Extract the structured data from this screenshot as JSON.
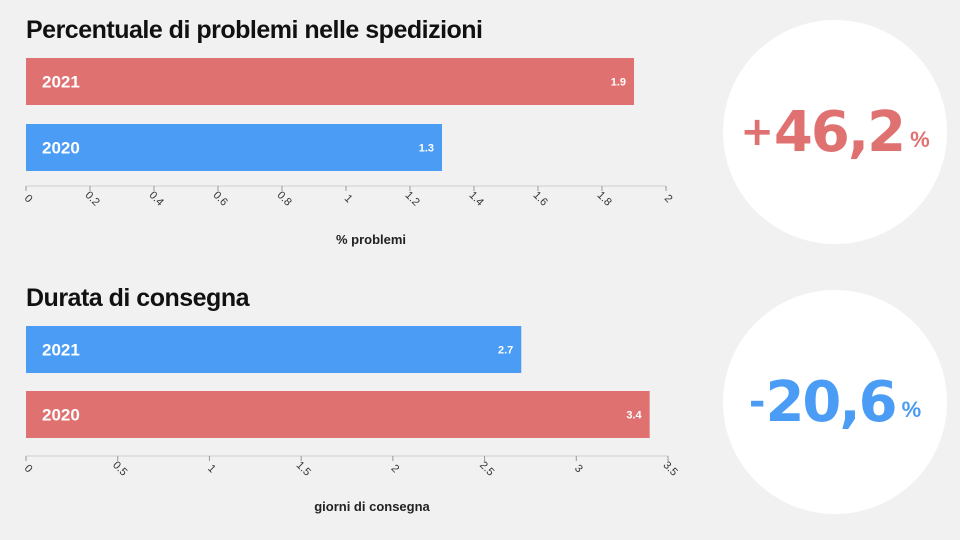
{
  "colors": {
    "red": "#e07171",
    "blue": "#4a9cf5",
    "background": "#f1f1f1"
  },
  "chart_data": [
    {
      "type": "bar",
      "orientation": "horizontal",
      "title": "Percentuale di problemi nelle spedizioni",
      "categories": [
        "2021",
        "2020"
      ],
      "values": [
        1.9,
        1.3
      ],
      "value_labels": [
        "1.9",
        "1.3"
      ],
      "bar_colors": [
        "#e07171",
        "#4a9cf5"
      ],
      "xlabel": "% problemi",
      "xlim": [
        0,
        2
      ],
      "xticks": [
        0,
        0.2,
        0.4,
        0.6,
        0.8,
        1,
        1.2,
        1.4,
        1.6,
        1.8,
        2
      ],
      "xtick_labels": [
        "0",
        "0.2",
        "0.4",
        "0.6",
        "0.8",
        "1",
        "1.2",
        "1.4",
        "1.6",
        "1.8",
        "2"
      ],
      "grid": false
    },
    {
      "type": "bar",
      "orientation": "horizontal",
      "title": "Durata di consegna",
      "categories": [
        "2021",
        "2020"
      ],
      "values": [
        2.7,
        3.4
      ],
      "value_labels": [
        "2.7",
        "3.4"
      ],
      "bar_colors": [
        "#4a9cf5",
        "#e07171"
      ],
      "xlabel": "giorni di consegna",
      "xlim": [
        0,
        3.5
      ],
      "xticks": [
        0,
        0.5,
        1,
        1.5,
        2,
        2.5,
        3,
        3.5
      ],
      "xtick_labels": [
        "0",
        "0.5",
        "1",
        "1.5",
        "2",
        "2.5",
        "3",
        "3.5"
      ],
      "grid": false
    }
  ],
  "badges": [
    {
      "sign": "+",
      "number": "46,2",
      "unit": "%",
      "color": "#e07171"
    },
    {
      "sign": "-",
      "number": "20,6",
      "unit": "%",
      "color": "#4a9cf5"
    }
  ]
}
